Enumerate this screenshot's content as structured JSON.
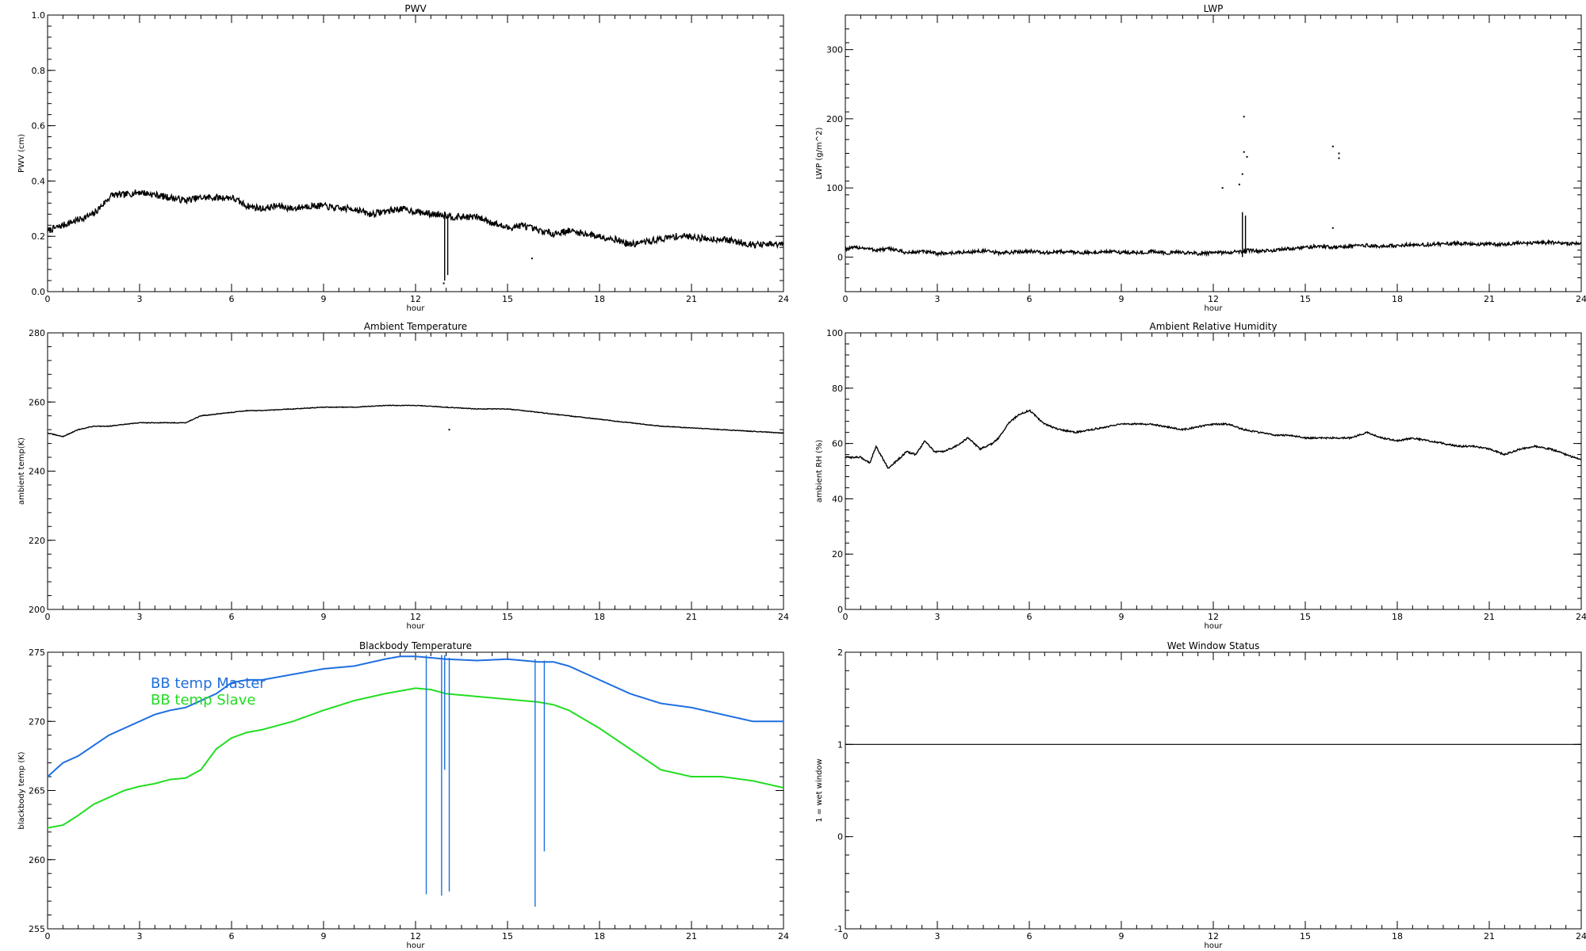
{
  "chart_data": [
    {
      "id": "pwv",
      "type": "line",
      "title": "PWV",
      "xlabel": "hour",
      "ylabel": "PWV (cm)",
      "xlim": [
        0,
        24
      ],
      "ylim": [
        0,
        1.0
      ],
      "xticks": [
        "0",
        "3",
        "6",
        "9",
        "12",
        "15",
        "18",
        "21",
        "24"
      ],
      "yticks": [
        0,
        0.2,
        0.4,
        0.6,
        0.8,
        1.0
      ],
      "ytick_labels": [
        "0.0",
        "0.2",
        "0.4",
        "0.6",
        "0.8",
        "1.0"
      ],
      "series": [
        {
          "color": "#000000",
          "noise": 0.012,
          "x": [
            0,
            0.5,
            1,
            1.5,
            2.1,
            2.5,
            3,
            3.5,
            4,
            4.5,
            5,
            5.5,
            6,
            6.5,
            7,
            7.5,
            8,
            8.5,
            9,
            9.5,
            10,
            10.5,
            11,
            11.5,
            12,
            12.5,
            12.9,
            13.2,
            13.5,
            14,
            14.5,
            15,
            15.5,
            16,
            16.5,
            17,
            17.5,
            18,
            18.5,
            19,
            19.5,
            20,
            20.5,
            21,
            21.5,
            22,
            22.5,
            23,
            23.5,
            24
          ],
          "y": [
            0.22,
            0.24,
            0.26,
            0.28,
            0.35,
            0.35,
            0.36,
            0.35,
            0.34,
            0.33,
            0.34,
            0.34,
            0.34,
            0.31,
            0.3,
            0.31,
            0.3,
            0.31,
            0.31,
            0.3,
            0.3,
            0.28,
            0.29,
            0.3,
            0.29,
            0.28,
            0.28,
            0.27,
            0.27,
            0.27,
            0.25,
            0.23,
            0.24,
            0.22,
            0.21,
            0.22,
            0.21,
            0.2,
            0.19,
            0.17,
            0.18,
            0.19,
            0.2,
            0.2,
            0.19,
            0.19,
            0.18,
            0.17,
            0.17,
            0.17
          ]
        }
      ],
      "spikes": [
        {
          "x": 12.95,
          "y0": 0.04,
          "y1": 0.29
        },
        {
          "x": 13.05,
          "y0": 0.06,
          "y1": 0.28
        }
      ],
      "scatter": [
        {
          "x": 12.92,
          "y": 0.03
        },
        {
          "x": 15.8,
          "y": 0.12
        }
      ]
    },
    {
      "id": "lwp",
      "type": "line",
      "title": "LWP",
      "xlabel": "hour",
      "ylabel": "LWP (g/m^2)",
      "xlim": [
        0,
        24
      ],
      "ylim": [
        -50,
        350
      ],
      "xticks": [
        "0",
        "3",
        "6",
        "9",
        "12",
        "15",
        "18",
        "21",
        "24"
      ],
      "yticks": [
        0,
        100,
        200,
        300
      ],
      "ytick_labels": [
        "0",
        "100",
        "200",
        "300"
      ],
      "series": [
        {
          "color": "#000000",
          "noise": 2.5,
          "x": [
            0,
            0.5,
            1,
            1.5,
            2,
            2.5,
            3,
            3.5,
            4,
            4.5,
            5,
            5.5,
            6,
            6.5,
            7,
            7.5,
            8,
            8.5,
            9,
            9.5,
            10,
            10.5,
            11,
            11.5,
            12,
            12.5,
            12.9,
            13.2,
            13.5,
            14,
            14.5,
            15,
            15.5,
            16,
            16.5,
            17,
            17.5,
            18,
            18.5,
            19,
            19.5,
            20,
            20.5,
            21,
            21.5,
            22,
            22.5,
            23,
            23.5,
            24
          ],
          "y": [
            12,
            14,
            10,
            12,
            6,
            8,
            5,
            6,
            7,
            9,
            6,
            7,
            9,
            6,
            8,
            7,
            6,
            8,
            7,
            6,
            8,
            6,
            7,
            5,
            6,
            7,
            8,
            10,
            8,
            10,
            12,
            14,
            16,
            14,
            16,
            17,
            15,
            17,
            18,
            18,
            19,
            20,
            18,
            19,
            18,
            20,
            20,
            21,
            20,
            19
          ]
        }
      ],
      "spikes": [
        {
          "x": 12.95,
          "y0": 0,
          "y1": 65
        },
        {
          "x": 13.05,
          "y0": 5,
          "y1": 60
        }
      ],
      "scatter": [
        {
          "x": 13.0,
          "y": 203
        },
        {
          "x": 13.0,
          "y": 152
        },
        {
          "x": 12.95,
          "y": 120
        },
        {
          "x": 12.85,
          "y": 105
        },
        {
          "x": 12.3,
          "y": 100
        },
        {
          "x": 13.1,
          "y": 145
        },
        {
          "x": 15.9,
          "y": 160
        },
        {
          "x": 16.1,
          "y": 150
        },
        {
          "x": 16.1,
          "y": 143
        },
        {
          "x": 15.9,
          "y": 42
        }
      ]
    },
    {
      "id": "ambtemp",
      "type": "line",
      "title": "Ambient Temperature",
      "xlabel": "hour",
      "ylabel": "ambient temp(K)",
      "xlim": [
        0,
        24
      ],
      "ylim": [
        200,
        280
      ],
      "xticks": [
        "0",
        "3",
        "6",
        "9",
        "12",
        "15",
        "18",
        "21",
        "24"
      ],
      "yticks": [
        200,
        220,
        240,
        260,
        280
      ],
      "ytick_labels": [
        "200",
        "220",
        "240",
        "260",
        "280"
      ],
      "series": [
        {
          "color": "#000000",
          "noise": 0.1,
          "x": [
            0,
            0.5,
            1,
            1.5,
            2,
            3,
            4,
            4.5,
            5,
            6,
            6.5,
            7,
            8,
            9,
            10,
            11,
            12,
            13,
            14,
            15,
            15.5,
            16,
            17,
            18,
            19,
            20,
            21,
            22,
            23,
            24
          ],
          "y": [
            251,
            250,
            252,
            253,
            253,
            254,
            254,
            254,
            256,
            257,
            257.5,
            257.5,
            258,
            258.5,
            258.5,
            259,
            259,
            258.5,
            258,
            258,
            257.5,
            257,
            256,
            255,
            254,
            253,
            252.5,
            252,
            251.5,
            251
          ]
        }
      ],
      "spikes": [],
      "scatter": [
        {
          "x": 13.1,
          "y": 252
        }
      ]
    },
    {
      "id": "ambrh",
      "type": "line",
      "title": "Ambient Relative Humidity",
      "xlabel": "hour",
      "ylabel": "ambient RH (%)",
      "xlim": [
        0,
        24
      ],
      "ylim": [
        0,
        100
      ],
      "xticks": [
        "0",
        "3",
        "6",
        "9",
        "12",
        "15",
        "18",
        "21",
        "24"
      ],
      "yticks": [
        0,
        20,
        40,
        60,
        80,
        100
      ],
      "ytick_labels": [
        "0",
        "20",
        "40",
        "60",
        "80",
        "100"
      ],
      "series": [
        {
          "color": "#000000",
          "noise": 0.3,
          "x": [
            0,
            0.5,
            0.8,
            1.0,
            1.4,
            1.7,
            2.0,
            2.3,
            2.6,
            2.9,
            3.2,
            3.6,
            4.0,
            4.4,
            4.8,
            5.0,
            5.3,
            5.6,
            6.0,
            6.2,
            6.5,
            7,
            7.5,
            8,
            8.5,
            9,
            9.5,
            10,
            10.5,
            11,
            11.5,
            12,
            12.5,
            13,
            13.5,
            14,
            14.5,
            15,
            15.5,
            16,
            16.5,
            17,
            17.5,
            18,
            18.5,
            19,
            19.5,
            20,
            20.5,
            21,
            21.5,
            22,
            22.5,
            23,
            23.5,
            24
          ],
          "y": [
            55,
            55,
            53,
            59,
            51,
            54,
            57,
            56,
            61,
            57,
            57,
            59,
            62,
            58,
            60,
            62,
            67,
            70,
            72,
            70,
            67,
            65,
            64,
            65,
            66,
            67,
            67,
            67,
            66,
            65,
            66,
            67,
            67,
            65,
            64,
            63,
            63,
            62,
            62,
            62,
            62,
            64,
            62,
            61,
            62,
            61,
            60,
            59,
            59,
            58,
            56,
            58,
            59,
            58,
            56,
            54
          ]
        }
      ],
      "spikes": [],
      "scatter": []
    },
    {
      "id": "bbtemp",
      "type": "line",
      "title": "Blackbody Temperature",
      "xlabel": "hour",
      "ylabel": "blackbody temp (K)",
      "xlim": [
        0,
        24
      ],
      "ylim": [
        255,
        275
      ],
      "xticks": [
        "0",
        "3",
        "6",
        "9",
        "12",
        "15",
        "18",
        "21",
        "24"
      ],
      "yticks": [
        255,
        260,
        265,
        270,
        275
      ],
      "ytick_labels": [
        "255",
        "260",
        "265",
        "270",
        "275"
      ],
      "legend": [
        "BB temp Master",
        "BB temp Slave"
      ],
      "series": [
        {
          "name": "BB temp Master",
          "color": "#1f6fe0",
          "noise": 0,
          "x": [
            0,
            0.5,
            1,
            2,
            2.5,
            3,
            3.5,
            4,
            4.5,
            5,
            5.5,
            6,
            6.5,
            7,
            7.5,
            8,
            9,
            10,
            11,
            11.5,
            12,
            12.5,
            13,
            14,
            15,
            16,
            16.5,
            17,
            18,
            19,
            20,
            21,
            22,
            23,
            24
          ],
          "y": [
            266,
            267,
            267.5,
            269,
            269.5,
            270,
            270.5,
            270.8,
            271,
            271.5,
            272,
            272.8,
            273,
            273,
            273.2,
            273.4,
            273.8,
            274,
            274.5,
            274.7,
            274.7,
            274.6,
            274.5,
            274.4,
            274.5,
            274.3,
            274.3,
            274,
            273,
            272,
            271.3,
            271,
            270.5,
            270,
            270
          ]
        },
        {
          "name": "BB temp Slave",
          "color": "#22dd22",
          "noise": 0,
          "x": [
            0,
            0.5,
            1,
            1.5,
            2,
            2.5,
            3,
            3.5,
            4,
            4.5,
            5,
            5.5,
            6,
            6.5,
            7,
            8,
            9,
            10,
            11,
            12,
            12.5,
            13,
            14,
            15,
            16,
            16.5,
            17,
            18,
            19,
            20,
            21,
            22,
            23,
            24
          ],
          "y": [
            262.3,
            262.5,
            263.2,
            264,
            264.5,
            265,
            265.3,
            265.5,
            265.8,
            265.9,
            266.5,
            268,
            268.8,
            269.2,
            269.4,
            270,
            270.8,
            271.5,
            272,
            272.4,
            272.3,
            272,
            271.8,
            271.6,
            271.4,
            271.2,
            270.8,
            269.5,
            268,
            266.5,
            266,
            266,
            265.7,
            265.2
          ]
        }
      ],
      "spikes": [
        {
          "x": 12.35,
          "y0": 257.5,
          "y1": 274.8,
          "color": "#1f6fe0"
        },
        {
          "x": 12.85,
          "y0": 257.4,
          "y1": 274.8,
          "color": "#1f6fe0"
        },
        {
          "x": 12.95,
          "y0": 266.5,
          "y1": 274.8,
          "color": "#1f6fe0"
        },
        {
          "x": 13.1,
          "y0": 257.7,
          "y1": 274.6,
          "color": "#1f6fe0"
        },
        {
          "x": 15.9,
          "y0": 256.6,
          "y1": 274.5,
          "color": "#1f6fe0"
        },
        {
          "x": 16.2,
          "y0": 260.6,
          "y1": 274.4,
          "color": "#1f6fe0"
        }
      ],
      "scatter": []
    },
    {
      "id": "wetwin",
      "type": "line",
      "title": "Wet Window Status",
      "xlabel": "hour",
      "ylabel": "1 = wet window",
      "xlim": [
        0,
        24
      ],
      "ylim": [
        -1,
        2
      ],
      "xticks": [
        "0",
        "3",
        "6",
        "9",
        "12",
        "15",
        "18",
        "21",
        "24"
      ],
      "yticks": [
        -1,
        0,
        1,
        2
      ],
      "ytick_labels": [
        "-1",
        "0",
        "1",
        "2"
      ],
      "series": [
        {
          "color": "#000000",
          "noise": 0,
          "x": [
            0,
            24
          ],
          "y": [
            1,
            1
          ]
        }
      ],
      "spikes": [],
      "scatter": []
    }
  ]
}
